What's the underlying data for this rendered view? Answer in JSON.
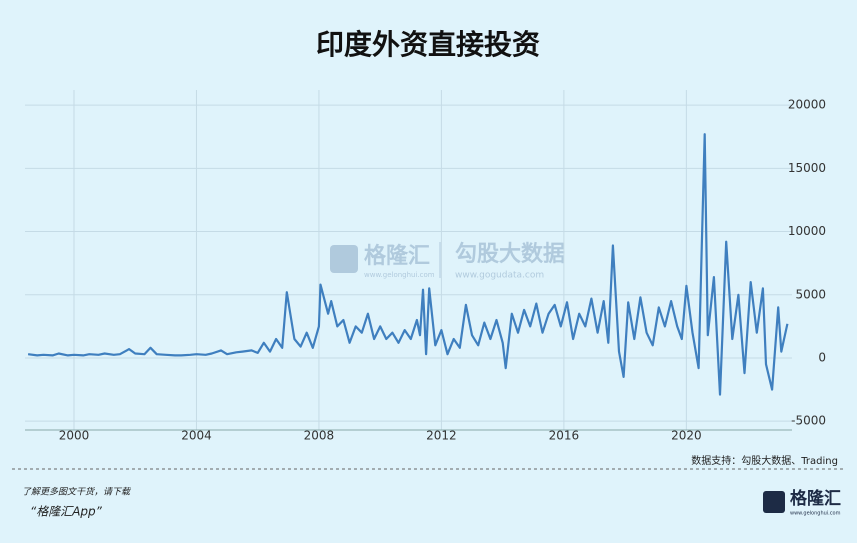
{
  "chart_data": {
    "type": "line",
    "title": "印度外资直接投资",
    "x": [
      1998.5,
      1998.8,
      1999.0,
      1999.3,
      1999.5,
      1999.8,
      2000.0,
      2000.3,
      2000.5,
      2000.8,
      2001.0,
      2001.3,
      2001.5,
      2001.8,
      2002.0,
      2002.3,
      2002.5,
      2002.7,
      2003.0,
      2003.3,
      2003.5,
      2003.8,
      2004.0,
      2004.3,
      2004.5,
      2004.8,
      2005.0,
      2005.3,
      2005.5,
      2005.8,
      2006.0,
      2006.2,
      2006.4,
      2006.6,
      2006.8,
      2006.95,
      2007.2,
      2007.4,
      2007.6,
      2007.8,
      2008.0,
      2008.05,
      2008.3,
      2008.4,
      2008.6,
      2008.8,
      2009.0,
      2009.2,
      2009.4,
      2009.6,
      2009.8,
      2010.0,
      2010.2,
      2010.4,
      2010.6,
      2010.8,
      2011.0,
      2011.2,
      2011.3,
      2011.4,
      2011.5,
      2011.6,
      2011.8,
      2012.0,
      2012.2,
      2012.4,
      2012.6,
      2012.8,
      2013.0,
      2013.2,
      2013.4,
      2013.6,
      2013.8,
      2014.0,
      2014.1,
      2014.3,
      2014.5,
      2014.7,
      2014.9,
      2015.1,
      2015.3,
      2015.5,
      2015.7,
      2015.9,
      2016.1,
      2016.3,
      2016.5,
      2016.7,
      2016.9,
      2017.1,
      2017.3,
      2017.45,
      2017.6,
      2017.8,
      2017.95,
      2018.1,
      2018.3,
      2018.5,
      2018.7,
      2018.9,
      2019.1,
      2019.3,
      2019.5,
      2019.7,
      2019.85,
      2020.0,
      2020.2,
      2020.4,
      2020.6,
      2020.7,
      2020.9,
      2021.1,
      2021.3,
      2021.5,
      2021.7,
      2021.9,
      2022.1,
      2022.3,
      2022.5,
      2022.6,
      2022.8,
      2023.0,
      2023.1,
      2023.3
    ],
    "values": [
      300,
      200,
      250,
      200,
      350,
      200,
      250,
      200,
      300,
      250,
      350,
      250,
      300,
      700,
      350,
      300,
      800,
      300,
      250,
      200,
      200,
      250,
      300,
      250,
      350,
      600,
      300,
      450,
      500,
      600,
      400,
      1200,
      500,
      1500,
      800,
      5200,
      1500,
      900,
      2000,
      800,
      2500,
      5800,
      3500,
      4500,
      2500,
      3000,
      1200,
      2500,
      2000,
      3500,
      1500,
      2500,
      1500,
      2000,
      1200,
      2200,
      1500,
      3000,
      1800,
      5400,
      300,
      5500,
      1000,
      2200,
      300,
      1500,
      800,
      4200,
      1800,
      1000,
      2800,
      1500,
      3000,
      1200,
      -800,
      3500,
      2000,
      3800,
      2500,
      4300,
      2000,
      3500,
      4200,
      2500,
      4400,
      1500,
      3500,
      2500,
      4700,
      2000,
      4500,
      1200,
      8900,
      500,
      -1500,
      4400,
      1500,
      4800,
      2000,
      1000,
      4000,
      2500,
      4500,
      2500,
      1500,
      5700,
      2000,
      -800,
      17700,
      1800,
      6400,
      -2900,
      9200,
      1500,
      5000,
      -1200,
      6000,
      2000,
      5500,
      -500,
      -2500,
      4000,
      500,
      2700
    ],
    "color": "#3f7fbf",
    "xlim": [
      1998.4,
      2023.45
    ],
    "xticks": [
      2000,
      2004,
      2008,
      2012,
      2016,
      2020
    ],
    "ylim": [
      -5700,
      21200
    ],
    "yticks": [
      -5000,
      0,
      5000,
      10000,
      15000,
      20000
    ],
    "grid": true,
    "source": "数据支持：勾股大数据、Trading"
  },
  "watermark": {
    "brand1": "格隆汇",
    "url1": "www.gelonghui.com",
    "brand2": "勾股大数据",
    "url2": "www.gogudata.com"
  },
  "footer": {
    "line1": "了解更多图文干货，请下载",
    "line2": "“格隆汇App”",
    "logo": "格隆汇",
    "logo_url": "www.gelonghui.com"
  }
}
